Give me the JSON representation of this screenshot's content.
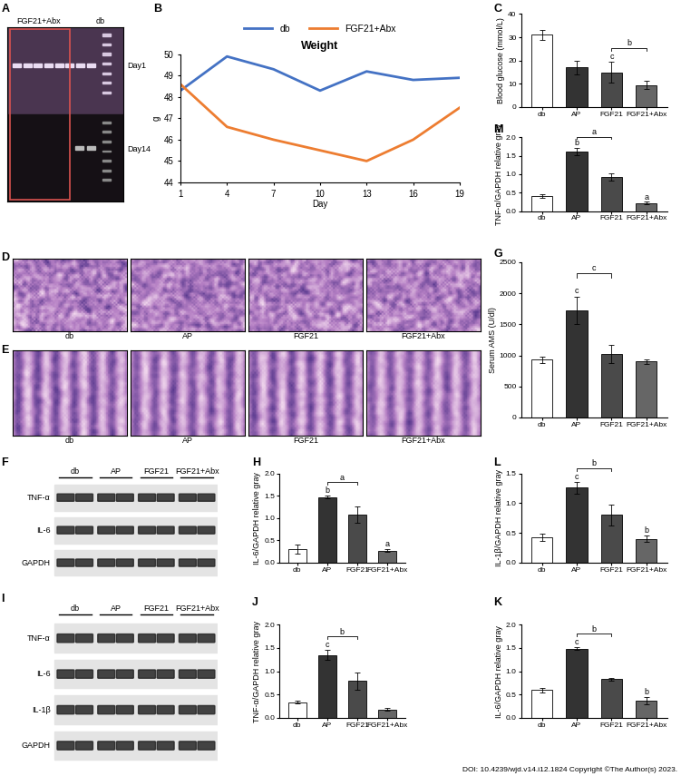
{
  "chart_data": [
    {
      "type": "line",
      "panel": "B",
      "title": "Weight",
      "x_label": "Day",
      "y_label": "g",
      "x": [
        1,
        4,
        7,
        10,
        13,
        16,
        19
      ],
      "series": [
        {
          "name": "db",
          "color": "#4472c4",
          "values": [
            48.3,
            49.9,
            49.3,
            48.3,
            49.2,
            48.8,
            48.9
          ]
        },
        {
          "name": "FGF21+Abx",
          "color": "#ed7d31",
          "values": [
            48.6,
            46.6,
            46.0,
            45.5,
            45.0,
            46.0,
            47.5
          ]
        }
      ],
      "xlim": [
        1,
        19
      ],
      "xticks": [
        1,
        4,
        7,
        10,
        13,
        16,
        19
      ],
      "ylim": [
        44,
        50
      ],
      "yticks": [
        44,
        45,
        46,
        47,
        48,
        49,
        50
      ],
      "legend": "upper center",
      "grid": false
    },
    {
      "type": "bar",
      "panel": "C",
      "y_label": "Blood glucose (mmol/L)",
      "categories": [
        "db",
        "AP",
        "FGF21",
        "FGF21+Abx"
      ],
      "values": [
        31,
        17,
        15,
        9.5
      ],
      "errors": [
        2,
        3,
        4.5,
        1.8
      ],
      "colors": [
        "#ffffff",
        "#333333",
        "#4a4a4a",
        "#666666"
      ],
      "ylim": [
        0,
        40
      ],
      "yticks": [
        0,
        10,
        20,
        30,
        40
      ],
      "annotations": [
        {
          "category": "FGF21",
          "text": "c"
        }
      ],
      "brackets": [
        {
          "from": "FGF21",
          "to": "FGF21+Abx",
          "text": "b"
        }
      ]
    },
    {
      "type": "bar",
      "panel": "M",
      "y_label": "TNF-α/GAPDH relative gray",
      "categories": [
        "db",
        "AP",
        "FGF21",
        "FGF21+Abx"
      ],
      "values": [
        0.4,
        1.62,
        0.92,
        0.22
      ],
      "errors": [
        0.05,
        0.1,
        0.1,
        0.03
      ],
      "colors": [
        "#ffffff",
        "#333333",
        "#4a4a4a",
        "#666666"
      ],
      "ylim": [
        0,
        2
      ],
      "yticks": [
        {
          "value": 0,
          "label": "0.0"
        },
        0.5,
        {
          "value": 1,
          "label": "1.0"
        },
        1.5,
        {
          "value": 2,
          "label": "2.0"
        }
      ],
      "annotations": [
        {
          "category": "AP",
          "text": "b"
        },
        {
          "category": "FGF21+Abx",
          "text": "a"
        }
      ],
      "brackets": [
        {
          "from": "AP",
          "to": "FGF21",
          "text": "a"
        }
      ]
    },
    {
      "type": "bar",
      "panel": "G",
      "y_label": "Serum AMS (U/dl)",
      "categories": [
        "db",
        "AP",
        "FGF21",
        "FGF21+Abx"
      ],
      "values": [
        930,
        1730,
        1020,
        900
      ],
      "errors": [
        50,
        220,
        150,
        40
      ],
      "colors": [
        "#ffffff",
        "#333333",
        "#4a4a4a",
        "#666666"
      ],
      "ylim": [
        0,
        2500
      ],
      "yticks": [
        0,
        500,
        1000,
        1500,
        2000,
        2500
      ],
      "annotations": [
        {
          "category": "AP",
          "text": "c"
        }
      ],
      "brackets": [
        {
          "from": "AP",
          "to": "FGF21",
          "text": "c"
        }
      ]
    },
    {
      "type": "bar",
      "panel": "H",
      "y_label": "IL-6/GAPDH relative gray",
      "categories": [
        "db",
        "AP",
        "FGF21",
        "FGF21+Abx"
      ],
      "values": [
        0.3,
        1.47,
        1.07,
        0.27
      ],
      "errors": [
        0.1,
        0.03,
        0.18,
        0.03
      ],
      "colors": [
        "#ffffff",
        "#333333",
        "#4a4a4a",
        "#666666"
      ],
      "ylim": [
        0,
        2
      ],
      "yticks": [
        {
          "value": 0,
          "label": "0.0"
        },
        0.5,
        {
          "value": 1,
          "label": "1.0"
        },
        1.5,
        {
          "value": 2,
          "label": "2.0"
        }
      ],
      "annotations": [
        {
          "category": "AP",
          "text": "b"
        },
        {
          "category": "FGF21+Abx",
          "text": "a"
        }
      ],
      "brackets": [
        {
          "from": "AP",
          "to": "FGF21",
          "text": "a"
        }
      ]
    },
    {
      "type": "bar",
      "panel": "L",
      "y_label": "IL-1β/GAPDH relative gray",
      "categories": [
        "db",
        "AP",
        "FGF21",
        "FGF21+Abx"
      ],
      "values": [
        0.43,
        1.26,
        0.8,
        0.4
      ],
      "errors": [
        0.06,
        0.1,
        0.17,
        0.05
      ],
      "colors": [
        "#ffffff",
        "#333333",
        "#4a4a4a",
        "#666666"
      ],
      "ylim": [
        0,
        1.5
      ],
      "yticks": [
        {
          "value": 0,
          "label": "0.0"
        },
        0.5,
        {
          "value": 1,
          "label": "1.0"
        },
        1.5
      ],
      "annotations": [
        {
          "category": "AP",
          "text": "c"
        },
        {
          "category": "FGF21+Abx",
          "text": "b"
        }
      ],
      "brackets": [
        {
          "from": "AP",
          "to": "FGF21",
          "text": "b"
        }
      ]
    },
    {
      "type": "bar",
      "panel": "J",
      "y_label": "TNF-α/GAPDH relative gray",
      "categories": [
        "db",
        "AP",
        "FGF21",
        "FGF21+Abx"
      ],
      "values": [
        0.33,
        1.35,
        0.79,
        0.18
      ],
      "errors": [
        0.03,
        0.1,
        0.18,
        0.03
      ],
      "colors": [
        "#ffffff",
        "#333333",
        "#4a4a4a",
        "#666666"
      ],
      "ylim": [
        0,
        2
      ],
      "yticks": [
        {
          "value": 0,
          "label": "0.0"
        },
        0.5,
        {
          "value": 1,
          "label": "1.0"
        },
        1.5,
        {
          "value": 2,
          "label": "2.0"
        }
      ],
      "annotations": [
        {
          "category": "AP",
          "text": "c"
        }
      ],
      "brackets": [
        {
          "from": "AP",
          "to": "FGF21",
          "text": "b"
        }
      ]
    },
    {
      "type": "bar",
      "panel": "K",
      "y_label": "IL-6/GAPDH relative gray",
      "categories": [
        "db",
        "AP",
        "FGF21",
        "FGF21+Abx"
      ],
      "values": [
        0.6,
        1.48,
        0.83,
        0.37
      ],
      "errors": [
        0.05,
        0.03,
        0.03,
        0.08
      ],
      "colors": [
        "#ffffff",
        "#333333",
        "#4a4a4a",
        "#666666"
      ],
      "ylim": [
        0,
        2
      ],
      "yticks": [
        {
          "value": 0,
          "label": "0.0"
        },
        0.5,
        {
          "value": 1,
          "label": "1.0"
        },
        1.5,
        {
          "value": 2,
          "label": "2.0"
        }
      ],
      "annotations": [
        {
          "category": "AP",
          "text": "c"
        },
        {
          "category": "FGF21+Abx",
          "text": "b"
        }
      ],
      "brackets": [
        {
          "from": "AP",
          "to": "FGF21",
          "text": "b"
        }
      ]
    }
  ],
  "images": [
    {
      "type": "gel",
      "panel": "A",
      "column_labels": [
        "FGF21+Abx",
        "db"
      ],
      "row_labels": [
        "Day1",
        "Day14"
      ]
    },
    {
      "type": "histology",
      "panel": "D",
      "labels": [
        "db",
        "AP",
        "FGF21",
        "FGF21+Abx"
      ]
    },
    {
      "type": "histology",
      "panel": "E",
      "labels": [
        "db",
        "AP",
        "FGF21",
        "FGF21+Abx"
      ]
    },
    {
      "type": "blot",
      "panel": "F",
      "lanes": [
        "db",
        "AP",
        "FGF21",
        "FGF21+Abx"
      ],
      "rows": [
        "TNF-α",
        "IL-6",
        "GAPDH"
      ]
    },
    {
      "type": "blot",
      "panel": "I",
      "lanes": [
        "db",
        "AP",
        "FGF21",
        "FGF21+Abx"
      ],
      "rows": [
        "TNF-α",
        "IL-6",
        "IL-1β",
        "GAPDH"
      ]
    }
  ],
  "footer": "DOI: 10.4239/wjd.v14.i12.1824 Copyright ©The Author(s) 2023."
}
